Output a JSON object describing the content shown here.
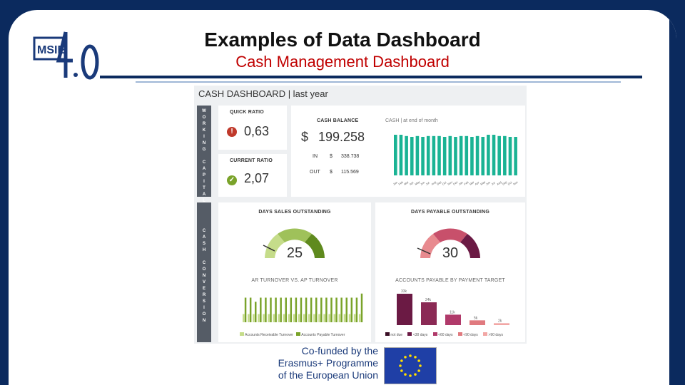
{
  "slide": {
    "title": "Examples of Data Dashboard",
    "subtitle": "Cash Management Dashboard"
  },
  "logo": {
    "text_main": "MSIE",
    "text_version": "4.0"
  },
  "dashboard": {
    "heading": "CASH DASHBOARD | last year",
    "sidebar_top": "W O R K I N G   C A P I T A L",
    "sidebar_bottom": "C A S H   C O N V E R S I O N",
    "quick_ratio": {
      "label": "QUICK RATIO",
      "value": "0,63"
    },
    "current_ratio": {
      "label": "CURRENT RATIO",
      "value": "2,07"
    },
    "cash_balance": {
      "label": "CASH BALANCE",
      "currency": "$",
      "value": "199.258",
      "in_label": "IN",
      "in_currency": "$",
      "in_value": "338.738",
      "out_label": "OUT",
      "out_currency": "$",
      "out_value": "115.569"
    },
    "cash_chart_label": "CASH | at end of month",
    "dso": {
      "label": "DAYS SALES OUTSTANDING",
      "value": "25"
    },
    "dpo": {
      "label": "DAYS PAYABLE OUTSTANDING",
      "value": "30"
    },
    "turnover_label": "AR TURNOVER VS. AP TURNOVER",
    "payable_label": "ACCOUNTS PAYABLE BY PAYMENT TARGET",
    "turnover_legend": [
      "Accounts Receivable Turnover",
      "Accounts Payable Turnover"
    ],
    "payable_legend": [
      "not due",
      "<30 days",
      "<60 days",
      "<90 days",
      ">90 days"
    ],
    "colors": {
      "teal": "#1ab394",
      "green": "#7aa32a",
      "light_green": "#c5dc8a",
      "red": "#c0392b",
      "plum": "#6b1a44",
      "pink": "#d9687a",
      "sidebar": "#555c66"
    }
  },
  "chart_data": [
    {
      "type": "bar",
      "title": "CASH | at end of month",
      "categories": [
        "Jan",
        "Feb",
        "Mar",
        "Apr",
        "May",
        "Jun",
        "Jul",
        "Aug",
        "Sep",
        "Oct",
        "Nov",
        "Dec",
        "Jan",
        "Feb",
        "Mar",
        "Apr",
        "May",
        "Jun",
        "Jul",
        "Aug",
        "Sep",
        "Oct",
        "Nov"
      ],
      "values": [
        95,
        95,
        92,
        90,
        92,
        90,
        92,
        92,
        92,
        90,
        92,
        90,
        92,
        92,
        90,
        92,
        90,
        95,
        95,
        92,
        92,
        90,
        90
      ]
    },
    {
      "type": "bar",
      "title": "AR TURNOVER VS. AP TURNOVER",
      "series": [
        {
          "name": "Accounts Receivable Turnover",
          "values": [
            1,
            1,
            1,
            1,
            1,
            1,
            1,
            1,
            1,
            1,
            1,
            1,
            1,
            1,
            1,
            1,
            1,
            1,
            1,
            1,
            1,
            1,
            1,
            1
          ]
        },
        {
          "name": "Accounts Payable Turnover",
          "values": [
            3,
            3,
            2.5,
            3,
            3,
            3,
            3,
            3,
            3,
            3,
            3,
            3,
            3,
            3,
            3,
            3,
            3,
            3,
            3,
            3,
            3,
            3,
            3,
            3.5
          ]
        }
      ]
    },
    {
      "type": "bar",
      "title": "ACCOUNTS PAYABLE BY PAYMENT TARGET",
      "categories": [
        "not due",
        "<30 days",
        "<60 days",
        "<90 days",
        ">90 days"
      ],
      "values": [
        33,
        24,
        11,
        5,
        2
      ],
      "data_labels": [
        "33k",
        "24k",
        "11k",
        "5k",
        "2k"
      ]
    }
  ],
  "erasmus": {
    "line1": "Co-funded by the",
    "line2": "Erasmus+ Programme",
    "line3": "of the European Union"
  }
}
